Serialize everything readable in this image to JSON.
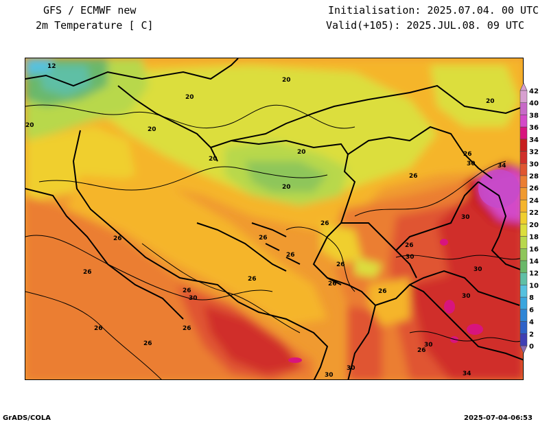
{
  "header": {
    "model": "GFS / ECMWF new",
    "field": "2m Temperature [ C]",
    "init": "Initialisation: 2025.07.04. 00 UTC",
    "valid": "Valid(+105): 2025.JUL.08. 09 UTC"
  },
  "footer": {
    "left": "GrADS/COLA",
    "right": "2025-07-04-06:53"
  },
  "colorbar": {
    "levels": [
      "0",
      "2",
      "4",
      "6",
      "8",
      "10",
      "12",
      "14",
      "16",
      "18",
      "20",
      "22",
      "24",
      "26",
      "28",
      "30",
      "32",
      "34",
      "36",
      "38",
      "40",
      "42"
    ],
    "colors": [
      "#8c6bb1",
      "#3f3fb4",
      "#2e62c8",
      "#2f86d6",
      "#3ba6de",
      "#56c1df",
      "#5fbfa5",
      "#6ab86a",
      "#8ec65a",
      "#b8d84c",
      "#dcde3c",
      "#f0cf2e",
      "#f5b52c",
      "#f09a30",
      "#eb7e33",
      "#e05530",
      "#d02f2a",
      "#c81e1e",
      "#d8147e",
      "#d34ac8",
      "#c76ac8",
      "#d7a0d0"
    ]
  },
  "map": {
    "contour_labels": [
      "12",
      "20",
      "20",
      "20",
      "20",
      "20",
      "20",
      "20",
      "20",
      "26",
      "26",
      "26",
      "26",
      "26",
      "26",
      "26",
      "26",
      "26",
      "26",
      "26",
      "26",
      "26",
      "26",
      "26",
      "26",
      "26",
      "30",
      "30",
      "30",
      "30",
      "30",
      "30",
      "30",
      "30",
      "30",
      "34",
      "34"
    ]
  }
}
